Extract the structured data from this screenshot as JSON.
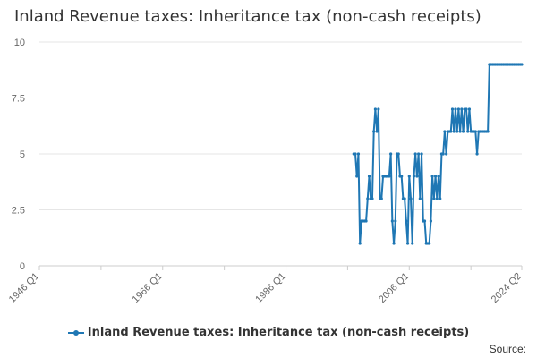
{
  "chart_data": {
    "type": "line",
    "title": "Inland Revenue taxes: Inheritance tax (non-cash receipts)",
    "xlabel": "",
    "ylabel": "",
    "ylim": [
      0,
      10
    ],
    "y_ticks": [
      "0",
      "2.5",
      "5",
      "7.5",
      "10"
    ],
    "x_ticks": [
      "1946 Q1",
      "1966 Q1",
      "1986 Q1",
      "2006 Q1",
      "2024 Q2"
    ],
    "x_domain": [
      1946.0,
      2024.25
    ],
    "grid": true,
    "legend_position": "bottom",
    "series": [
      {
        "name": "Inland Revenue taxes: Inheritance tax (non-cash receipts)",
        "color": "#1f77b4",
        "x": [
          1997.0,
          1997.25,
          1997.5,
          1997.75,
          1998.0,
          1998.25,
          1998.5,
          1998.75,
          1999.0,
          1999.25,
          1999.5,
          1999.75,
          2000.0,
          2000.25,
          2000.5,
          2000.75,
          2001.0,
          2001.25,
          2001.5,
          2001.75,
          2002.0,
          2002.25,
          2002.5,
          2002.75,
          2003.0,
          2003.25,
          2003.5,
          2003.75,
          2004.0,
          2004.25,
          2004.5,
          2004.75,
          2005.0,
          2005.25,
          2005.5,
          2005.75,
          2006.0,
          2006.25,
          2006.5,
          2006.75,
          2007.0,
          2007.25,
          2007.5,
          2007.75,
          2008.0,
          2008.25,
          2008.5,
          2008.75,
          2009.0,
          2009.25,
          2009.5,
          2009.75,
          2010.0,
          2010.25,
          2010.5,
          2010.75,
          2011.0,
          2011.25,
          2011.5,
          2011.75,
          2012.0,
          2012.25,
          2012.5,
          2012.75,
          2013.0,
          2013.25,
          2013.5,
          2013.75,
          2014.0,
          2014.25,
          2014.5,
          2014.75,
          2015.0,
          2015.25,
          2015.5,
          2015.75,
          2016.0,
          2016.25,
          2016.5,
          2016.75,
          2017.0,
          2017.25,
          2017.5,
          2017.75,
          2018.0,
          2018.25,
          2018.5,
          2018.75,
          2019.0,
          2019.25,
          2019.5,
          2019.75,
          2020.0,
          2020.25,
          2020.5,
          2020.75,
          2021.0,
          2021.25,
          2021.5,
          2021.75,
          2022.0,
          2022.25,
          2022.5,
          2022.75,
          2023.0,
          2023.25,
          2023.5,
          2023.75,
          2024.0,
          2024.25
        ],
        "values": [
          5,
          5,
          4,
          5,
          1,
          2,
          2,
          2,
          2,
          3,
          4,
          3,
          3,
          6,
          7,
          6,
          7,
          3,
          3,
          4,
          4,
          4,
          4,
          4,
          5,
          2,
          1,
          2,
          5,
          5,
          4,
          4,
          3,
          3,
          2,
          1,
          4,
          3,
          1,
          4,
          5,
          4,
          5,
          3,
          5,
          2,
          2,
          1,
          1,
          1,
          2,
          4,
          3,
          4,
          3,
          4,
          3,
          5,
          5,
          6,
          5,
          6,
          6,
          6,
          7,
          6,
          7,
          6,
          7,
          6,
          7,
          6,
          7,
          7,
          6,
          7,
          6,
          6,
          6,
          6,
          5,
          6,
          6,
          6,
          6,
          6,
          6,
          6,
          9,
          9,
          9,
          9,
          9,
          9,
          9,
          9,
          9,
          9,
          9,
          9,
          9,
          9,
          9,
          9,
          9,
          9,
          9,
          9,
          9,
          9
        ]
      }
    ]
  },
  "legend": {
    "label": "Inland Revenue taxes: Inheritance tax (non-cash receipts)"
  },
  "footer": {
    "source_label": "Source:"
  }
}
